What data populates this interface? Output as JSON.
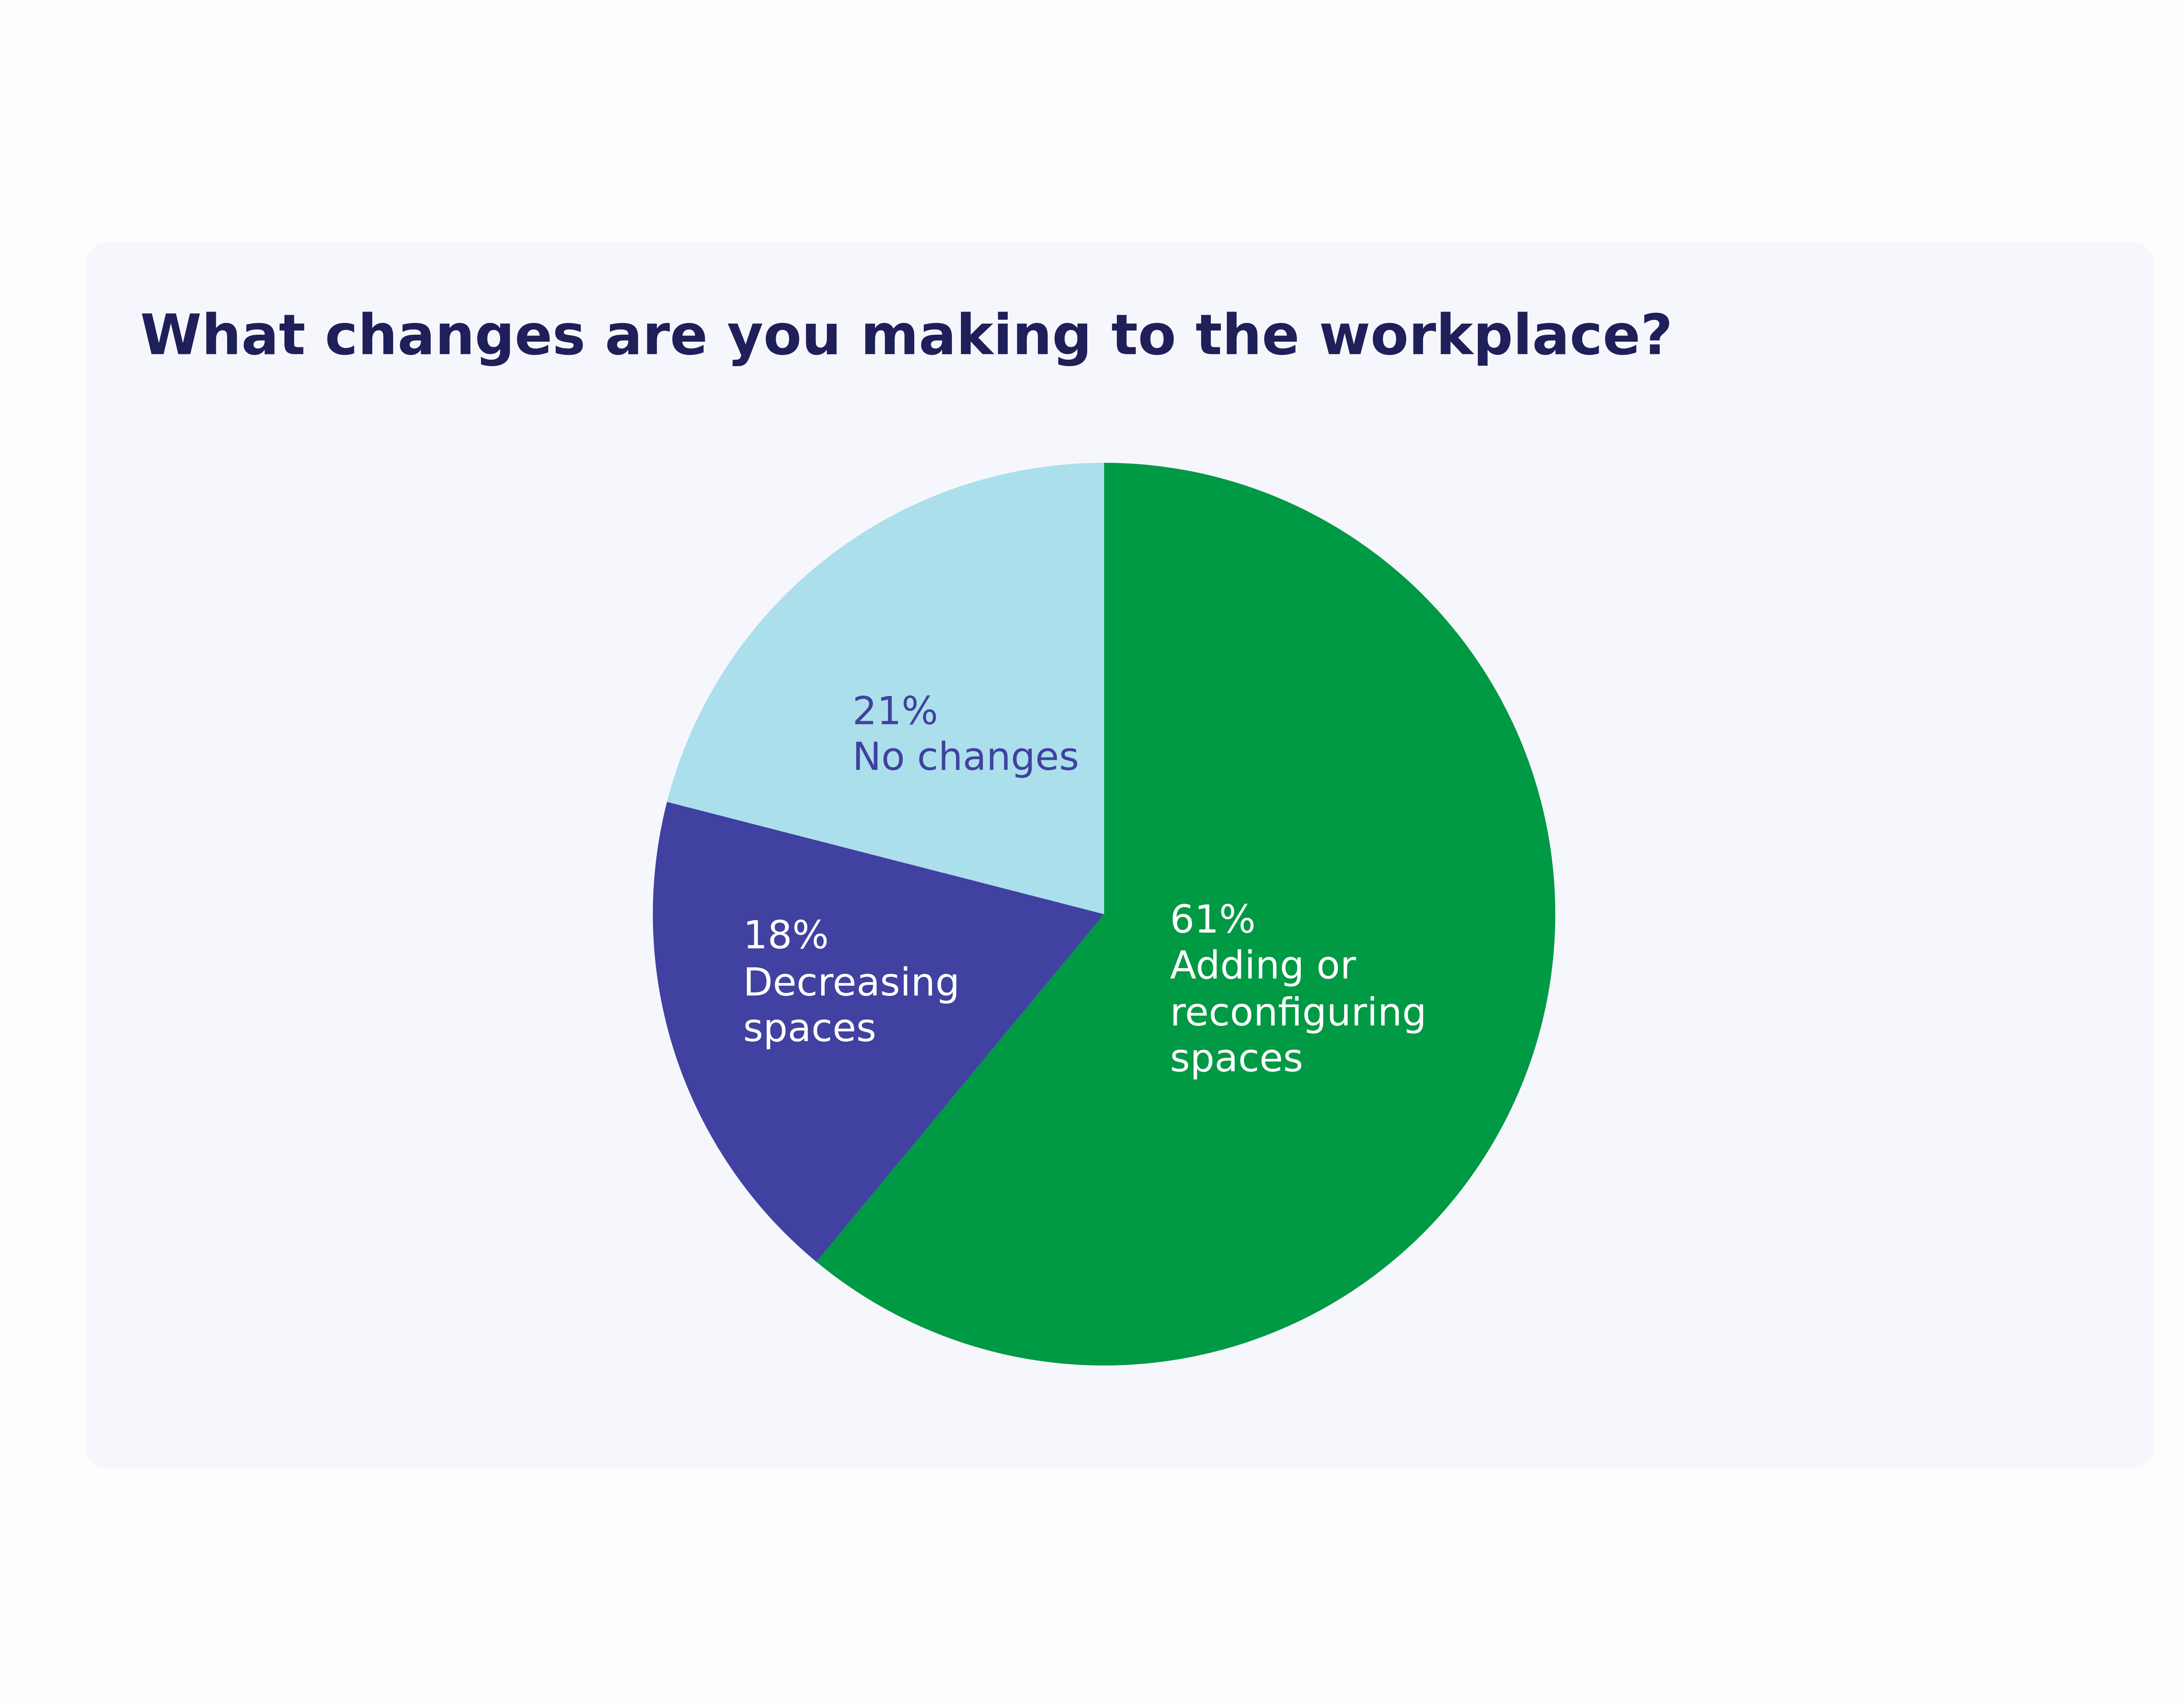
{
  "chart_data": {
    "type": "pie",
    "title": "What changes are you making to the workplace?",
    "categories": [
      "Adding or reconfiguring spaces",
      "Decreasing spaces",
      "No changes"
    ],
    "values": [
      61,
      18,
      21
    ],
    "value_labels": [
      "61%",
      "18%",
      "21%"
    ],
    "colors": [
      "#009944",
      "#4141a1",
      "#abdfec"
    ]
  }
}
